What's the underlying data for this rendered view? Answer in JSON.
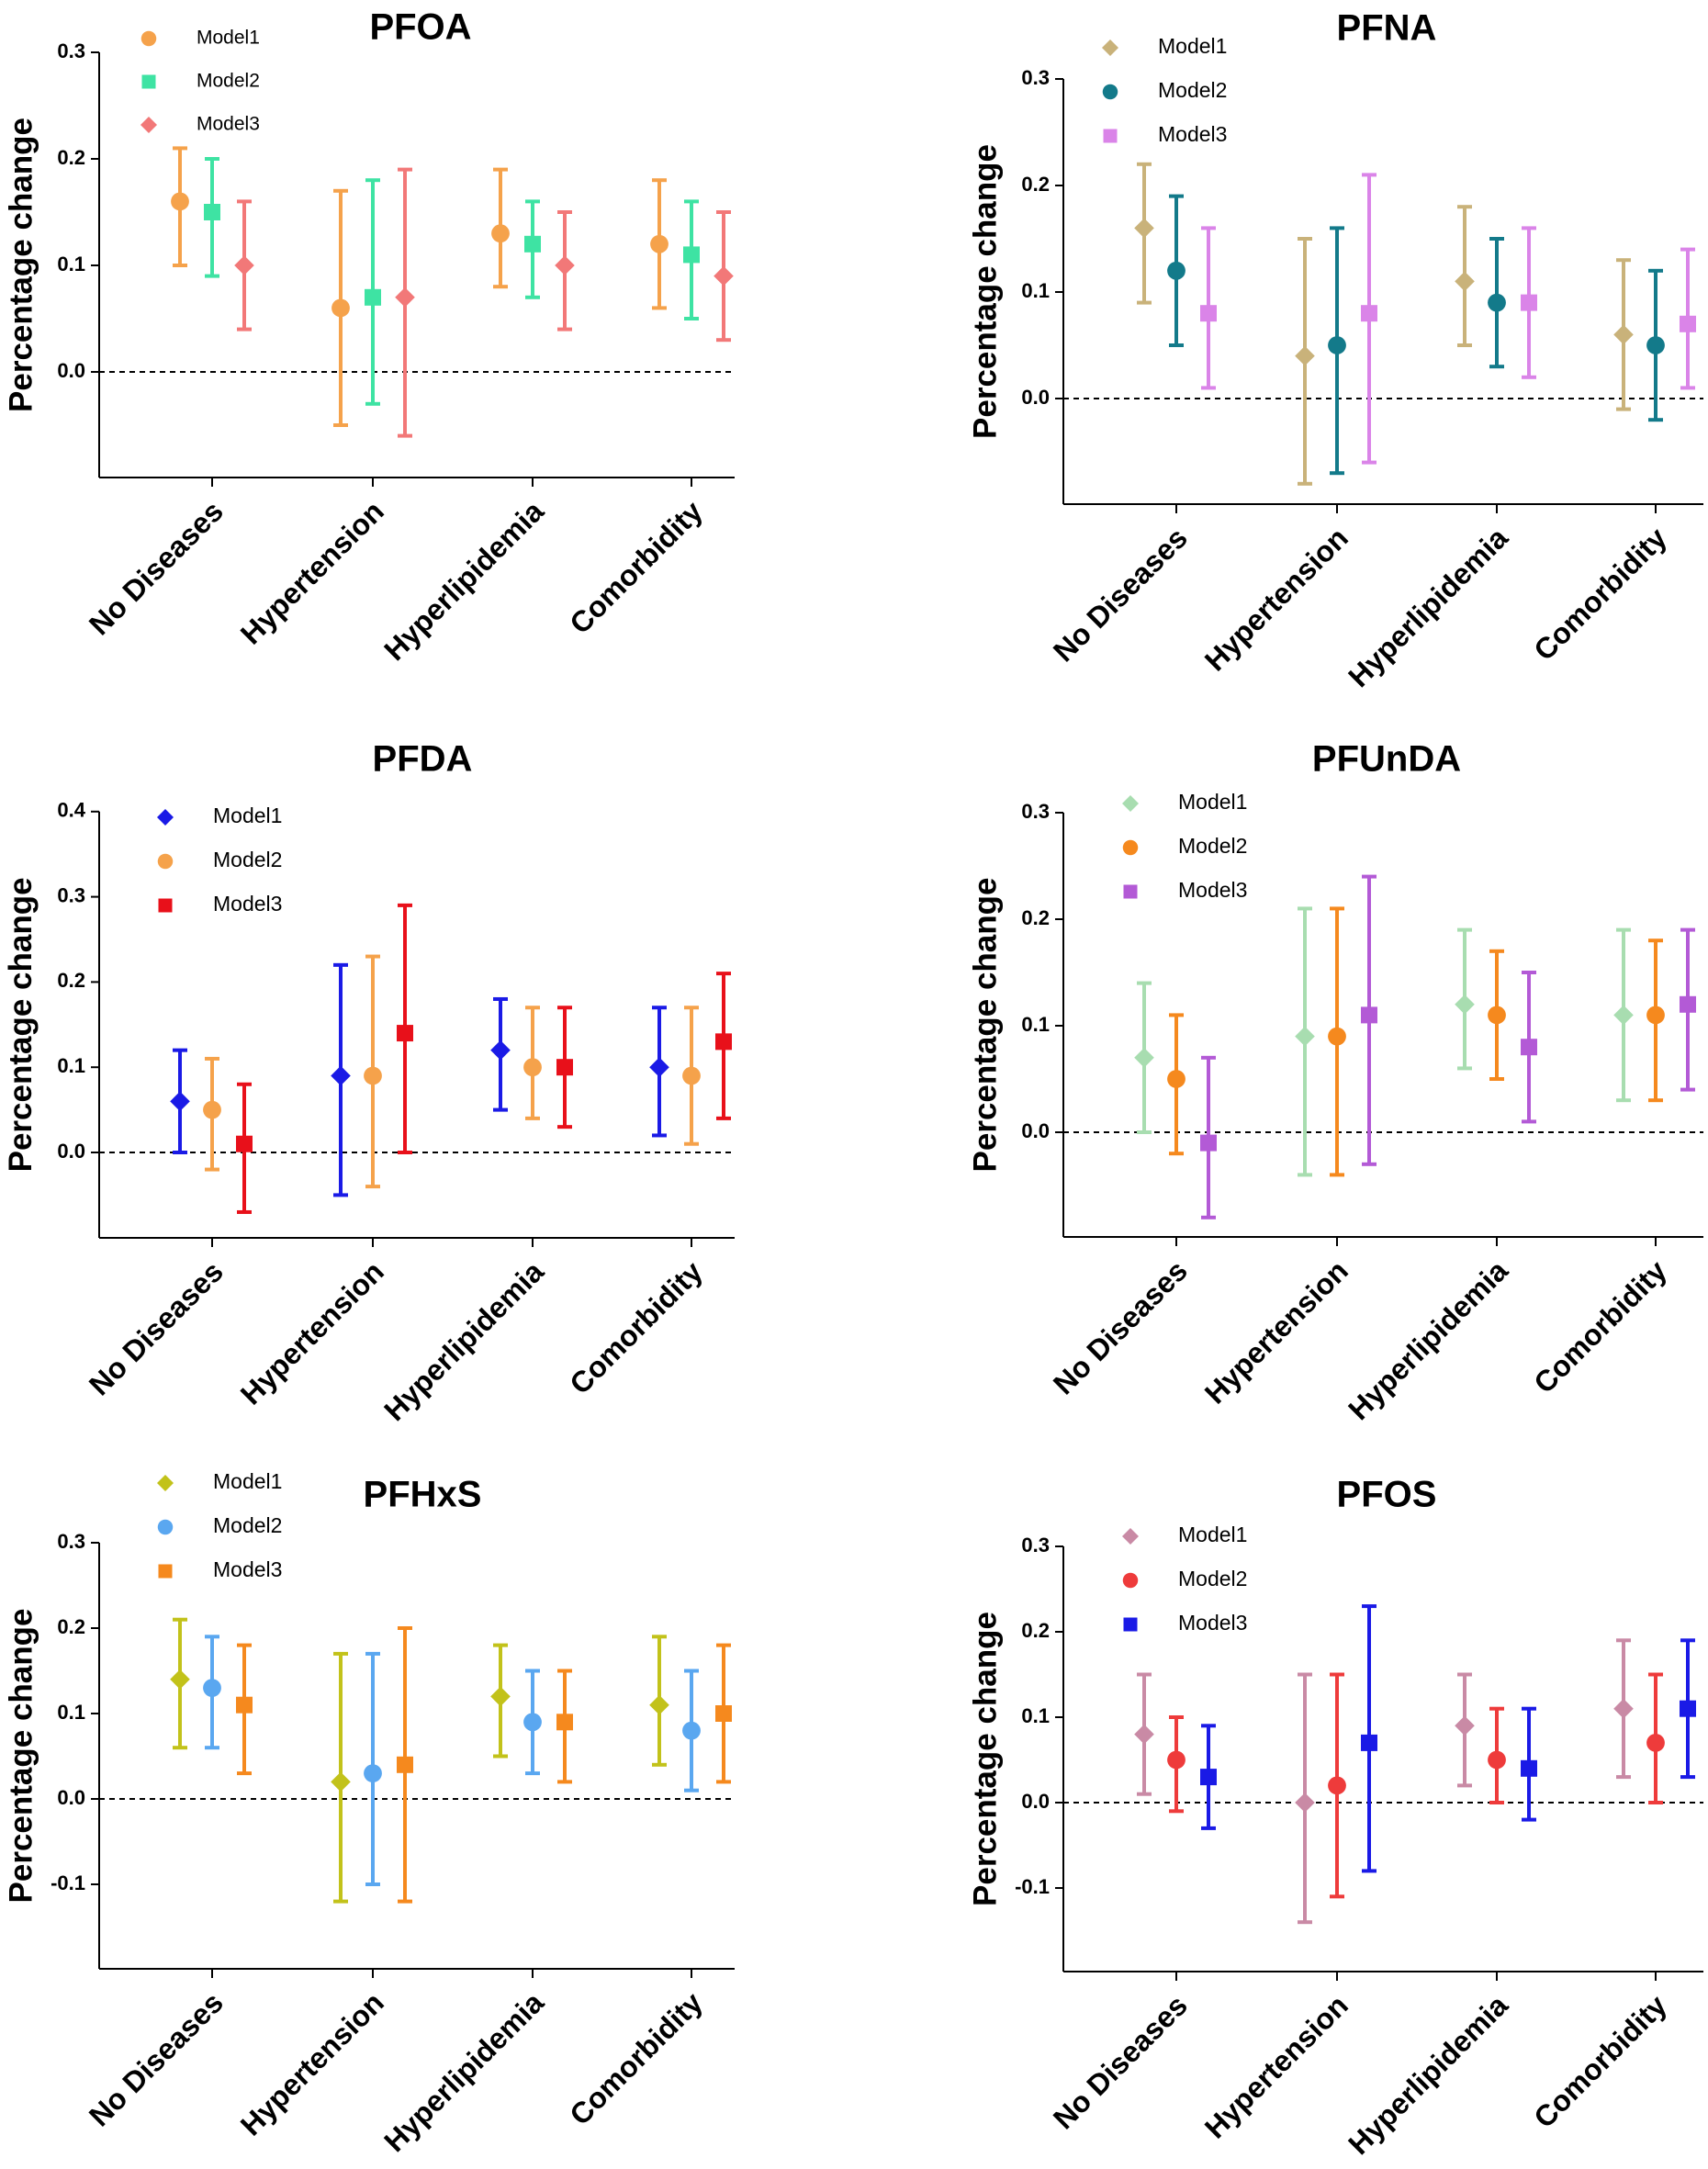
{
  "chart_data": [
    {
      "type": "errorbar",
      "title": "PFOA",
      "ylabel": "Percentage change",
      "ylim": [
        -0.1,
        0.3
      ],
      "yticks": [
        "0.0",
        "0.1",
        "0.2",
        "0.3"
      ],
      "categories": [
        "No Diseases",
        "Hypertension",
        "Hyperlipidemia",
        "Comorbidity"
      ],
      "legend": {
        "position": "top-left"
      },
      "reference_line": 0,
      "series": [
        {
          "name": "Model1",
          "color": "#F5A24B",
          "marker": "circle",
          "values": [
            0.16,
            0.06,
            0.13,
            0.12
          ],
          "lower": [
            0.1,
            -0.05,
            0.08,
            0.06
          ],
          "upper": [
            0.21,
            0.17,
            0.19,
            0.18
          ]
        },
        {
          "name": "Model2",
          "color": "#3EE3A3",
          "marker": "square",
          "values": [
            0.15,
            0.07,
            0.12,
            0.11
          ],
          "lower": [
            0.09,
            -0.03,
            0.07,
            0.05
          ],
          "upper": [
            0.2,
            0.18,
            0.16,
            0.16
          ]
        },
        {
          "name": "Model3",
          "color": "#F27878",
          "marker": "diamond",
          "values": [
            0.1,
            0.07,
            0.1,
            0.09
          ],
          "lower": [
            0.04,
            -0.06,
            0.04,
            0.03
          ],
          "upper": [
            0.16,
            0.19,
            0.15,
            0.15
          ]
        }
      ]
    },
    {
      "type": "errorbar",
      "title": "PFNA",
      "ylabel": "Percentage change",
      "ylim": [
        -0.1,
        0.3
      ],
      "yticks": [
        "0.0",
        "0.1",
        "0.2",
        "0.3"
      ],
      "categories": [
        "No Diseases",
        "Hypertension",
        "Hyperlipidemia",
        "Comorbidity"
      ],
      "legend": {
        "position": "top-left"
      },
      "reference_line": 0,
      "series": [
        {
          "name": "Model1",
          "color": "#C9B27A",
          "marker": "diamond",
          "values": [
            0.16,
            0.04,
            0.11,
            0.06
          ],
          "lower": [
            0.09,
            -0.08,
            0.05,
            -0.01
          ],
          "upper": [
            0.22,
            0.15,
            0.18,
            0.13
          ]
        },
        {
          "name": "Model2",
          "color": "#137A8A",
          "marker": "circle",
          "values": [
            0.12,
            0.05,
            0.09,
            0.05
          ],
          "lower": [
            0.05,
            -0.07,
            0.03,
            -0.02
          ],
          "upper": [
            0.19,
            0.16,
            0.15,
            0.12
          ]
        },
        {
          "name": "Model3",
          "color": "#DA84E8",
          "marker": "square",
          "values": [
            0.08,
            0.08,
            0.09,
            0.07
          ],
          "lower": [
            0.01,
            -0.06,
            0.02,
            0.01
          ],
          "upper": [
            0.16,
            0.21,
            0.16,
            0.14
          ]
        }
      ]
    },
    {
      "type": "errorbar",
      "title": "PFDA",
      "ylabel": "Percentage change",
      "ylim": [
        -0.1,
        0.4
      ],
      "yticks": [
        "0.0",
        "0.1",
        "0.2",
        "0.3",
        "0.4"
      ],
      "categories": [
        "No Diseases",
        "Hypertension",
        "Hyperlipidemia",
        "Comorbidity"
      ],
      "legend": {
        "position": "top-left"
      },
      "reference_line": 0,
      "series": [
        {
          "name": "Model1",
          "color": "#1A1AE6",
          "marker": "diamond",
          "values": [
            0.06,
            0.09,
            0.12,
            0.1
          ],
          "lower": [
            0.0,
            -0.05,
            0.05,
            0.02
          ],
          "upper": [
            0.12,
            0.22,
            0.18,
            0.17
          ]
        },
        {
          "name": "Model2",
          "color": "#F5A24B",
          "marker": "circle",
          "values": [
            0.05,
            0.09,
            0.1,
            0.09
          ],
          "lower": [
            -0.02,
            -0.04,
            0.04,
            0.01
          ],
          "upper": [
            0.11,
            0.23,
            0.17,
            0.17
          ]
        },
        {
          "name": "Model3",
          "color": "#E8101A",
          "marker": "square",
          "values": [
            0.01,
            0.14,
            0.1,
            0.13
          ],
          "lower": [
            -0.07,
            0.0,
            0.03,
            0.04
          ],
          "upper": [
            0.08,
            0.29,
            0.17,
            0.21
          ]
        }
      ]
    },
    {
      "type": "errorbar",
      "title": "PFUnDA",
      "ylabel": "Percentage change",
      "ylim": [
        -0.1,
        0.3
      ],
      "yticks": [
        "0.0",
        "0.1",
        "0.2",
        "0.3"
      ],
      "categories": [
        "No Diseases",
        "Hypertension",
        "Hyperlipidemia",
        "Comorbidity"
      ],
      "legend": {
        "position": "top-left"
      },
      "reference_line": 0,
      "series": [
        {
          "name": "Model1",
          "color": "#A8DDB0",
          "marker": "diamond",
          "values": [
            0.07,
            0.09,
            0.12,
            0.11
          ],
          "lower": [
            0.0,
            -0.04,
            0.06,
            0.03
          ],
          "upper": [
            0.14,
            0.21,
            0.19,
            0.19
          ]
        },
        {
          "name": "Model2",
          "color": "#F5891E",
          "marker": "circle",
          "values": [
            0.05,
            0.09,
            0.11,
            0.11
          ],
          "lower": [
            -0.02,
            -0.04,
            0.05,
            0.03
          ],
          "upper": [
            0.11,
            0.21,
            0.17,
            0.18
          ]
        },
        {
          "name": "Model3",
          "color": "#B35AD6",
          "marker": "square",
          "values": [
            -0.01,
            0.11,
            0.08,
            0.12
          ],
          "lower": [
            -0.08,
            -0.03,
            0.01,
            0.04
          ],
          "upper": [
            0.07,
            0.24,
            0.15,
            0.19
          ]
        }
      ]
    },
    {
      "type": "errorbar",
      "title": "PFHxS",
      "ylabel": "Percentage change",
      "ylim": [
        -0.2,
        0.3
      ],
      "yticks": [
        "-0.1",
        "0.0",
        "0.1",
        "0.2",
        "0.3"
      ],
      "categories": [
        "No Diseases",
        "Hypertension",
        "Hyperlipidemia",
        "Comorbidity"
      ],
      "legend": {
        "position": "top-left"
      },
      "reference_line": 0,
      "series": [
        {
          "name": "Model1",
          "color": "#C2C21A",
          "marker": "diamond",
          "values": [
            0.14,
            0.02,
            0.12,
            0.11
          ],
          "lower": [
            0.06,
            -0.12,
            0.05,
            0.04
          ],
          "upper": [
            0.21,
            0.17,
            0.18,
            0.19
          ]
        },
        {
          "name": "Model2",
          "color": "#5AA7F0",
          "marker": "circle",
          "values": [
            0.13,
            0.03,
            0.09,
            0.08
          ],
          "lower": [
            0.06,
            -0.1,
            0.03,
            0.01
          ],
          "upper": [
            0.19,
            0.17,
            0.15,
            0.15
          ]
        },
        {
          "name": "Model3",
          "color": "#F5891E",
          "marker": "square",
          "values": [
            0.11,
            0.04,
            0.09,
            0.1
          ],
          "lower": [
            0.03,
            -0.12,
            0.02,
            0.02
          ],
          "upper": [
            0.18,
            0.2,
            0.15,
            0.18
          ]
        }
      ]
    },
    {
      "type": "errorbar",
      "title": "PFOS",
      "ylabel": "Percentage change",
      "ylim": [
        -0.2,
        0.3
      ],
      "yticks": [
        "-0.1",
        "0.0",
        "0.1",
        "0.2",
        "0.3"
      ],
      "categories": [
        "No Diseases",
        "Hypertension",
        "Hyperlipidemia",
        "Comorbidity"
      ],
      "legend": {
        "position": "top-left"
      },
      "reference_line": 0,
      "series": [
        {
          "name": "Model1",
          "color": "#C98AA5",
          "marker": "diamond",
          "values": [
            0.08,
            0.0,
            0.09,
            0.11
          ],
          "lower": [
            0.01,
            -0.14,
            0.02,
            0.03
          ],
          "upper": [
            0.15,
            0.15,
            0.15,
            0.19
          ]
        },
        {
          "name": "Model2",
          "color": "#EE3B3B",
          "marker": "circle",
          "values": [
            0.05,
            0.02,
            0.05,
            0.07
          ],
          "lower": [
            -0.01,
            -0.11,
            0.0,
            0.0
          ],
          "upper": [
            0.1,
            0.15,
            0.11,
            0.15
          ]
        },
        {
          "name": "Model3",
          "color": "#1A1AE6",
          "marker": "square",
          "values": [
            0.03,
            0.07,
            0.04,
            0.11
          ],
          "lower": [
            -0.03,
            -0.08,
            -0.02,
            0.03
          ],
          "upper": [
            0.09,
            0.23,
            0.11,
            0.19
          ]
        }
      ]
    }
  ]
}
